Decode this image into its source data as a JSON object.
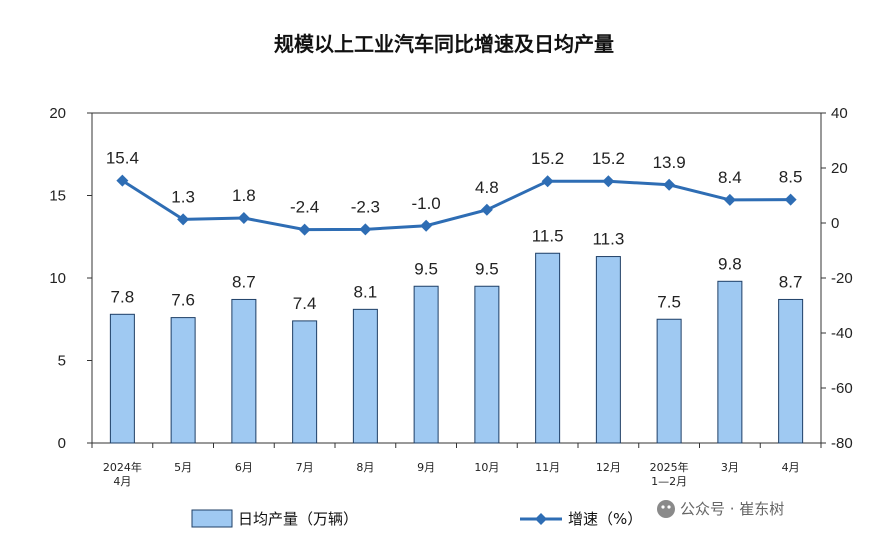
{
  "chart_data": {
    "type": "bar+line",
    "title": "规模以上工业汽车同比增速及日均产量",
    "categories": [
      [
        "2024年",
        "4月"
      ],
      [
        "5月"
      ],
      [
        "6月"
      ],
      [
        "7月"
      ],
      [
        "8月"
      ],
      [
        "9月"
      ],
      [
        "10月"
      ],
      [
        "11月"
      ],
      [
        "12月"
      ],
      [
        "2025年",
        "1—2月"
      ],
      [
        "3月"
      ],
      [
        "4月"
      ]
    ],
    "series": [
      {
        "name": "日均产量（万辆）",
        "type": "bar",
        "axis": "left",
        "color": "#9fc9f2",
        "values": [
          7.8,
          7.6,
          8.7,
          7.4,
          8.1,
          9.5,
          9.5,
          11.5,
          11.3,
          7.5,
          9.8,
          8.7
        ],
        "labels": [
          "7.8",
          "7.6",
          "8.7",
          "7.4",
          "8.1",
          "9.5",
          "9.5",
          "11.5",
          "11.3",
          "7.5",
          "9.8",
          "8.7"
        ]
      },
      {
        "name": "增速（%）",
        "type": "line",
        "axis": "right",
        "color": "#2e6db4",
        "values": [
          15.4,
          1.3,
          1.8,
          -2.4,
          -2.3,
          -1.0,
          4.8,
          15.2,
          15.2,
          13.9,
          8.4,
          8.5
        ],
        "labels": [
          "15.4",
          "1.3",
          "1.8",
          "-2.4",
          "-2.3",
          "-1.0",
          "4.8",
          "15.2",
          "15.2",
          "13.9",
          "8.4",
          "8.5"
        ]
      }
    ],
    "y_left": {
      "ylim": [
        0,
        20
      ],
      "ticks": [
        "0",
        "5",
        "10",
        "15",
        "20"
      ]
    },
    "y_right": {
      "ylim": [
        -80,
        40
      ],
      "ticks": [
        "-80",
        "-60",
        "-40",
        "-20",
        "0",
        "20",
        "40"
      ]
    },
    "grid": false,
    "legend": "bottom"
  },
  "watermark": "公众号 · 崔东树",
  "colors": {
    "bar_fill": "#9fc9f2",
    "bar_stroke": "#1f3f66",
    "line": "#2e6db4",
    "axis": "#333333"
  }
}
